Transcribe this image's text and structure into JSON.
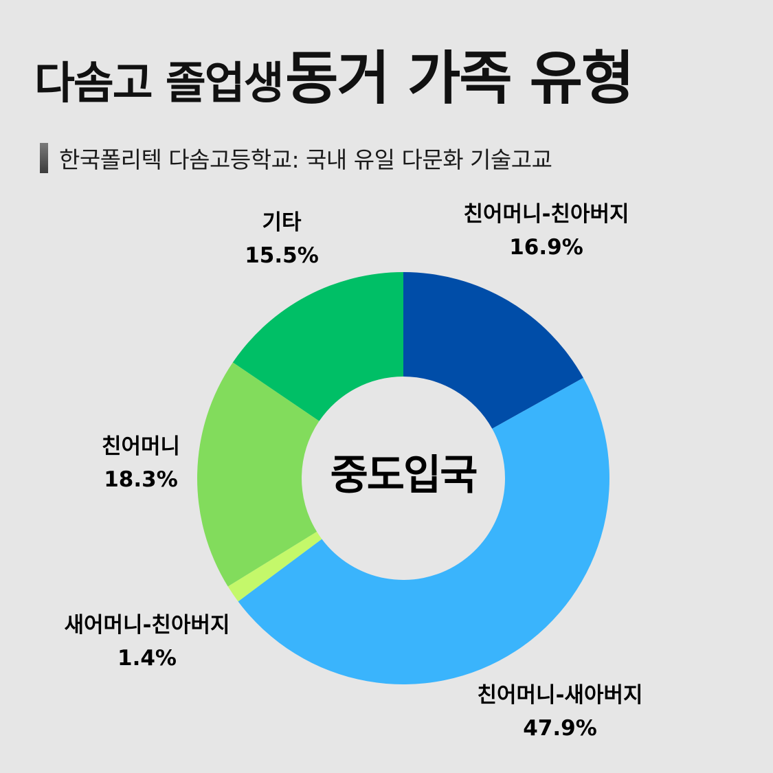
{
  "title": {
    "part1": "다솜고 졸업생",
    "part2": "동거 가족 유형"
  },
  "subtitle": "한국폴리텍 다솜고등학교: 국내 유일 다문화 기술고교",
  "chart_data": {
    "type": "pie",
    "center_label": "중도입국",
    "slices": [
      {
        "label": "친어머니-친아버지",
        "value": 16.9,
        "value_label": "16.9%",
        "color": "#004da8"
      },
      {
        "label": "친어머니-새아버지",
        "value": 47.9,
        "value_label": "47.9%",
        "color": "#3ab4fc"
      },
      {
        "label": "새어머니-친아버지",
        "value": 1.4,
        "value_label": "1.4%",
        "color": "#c4f86a"
      },
      {
        "label": "친어머니",
        "value": 18.3,
        "value_label": "18.3%",
        "color": "#82dc5c"
      },
      {
        "label": "기타",
        "value": 15.5,
        "value_label": "15.5%",
        "color": "#00bf66"
      }
    ]
  }
}
